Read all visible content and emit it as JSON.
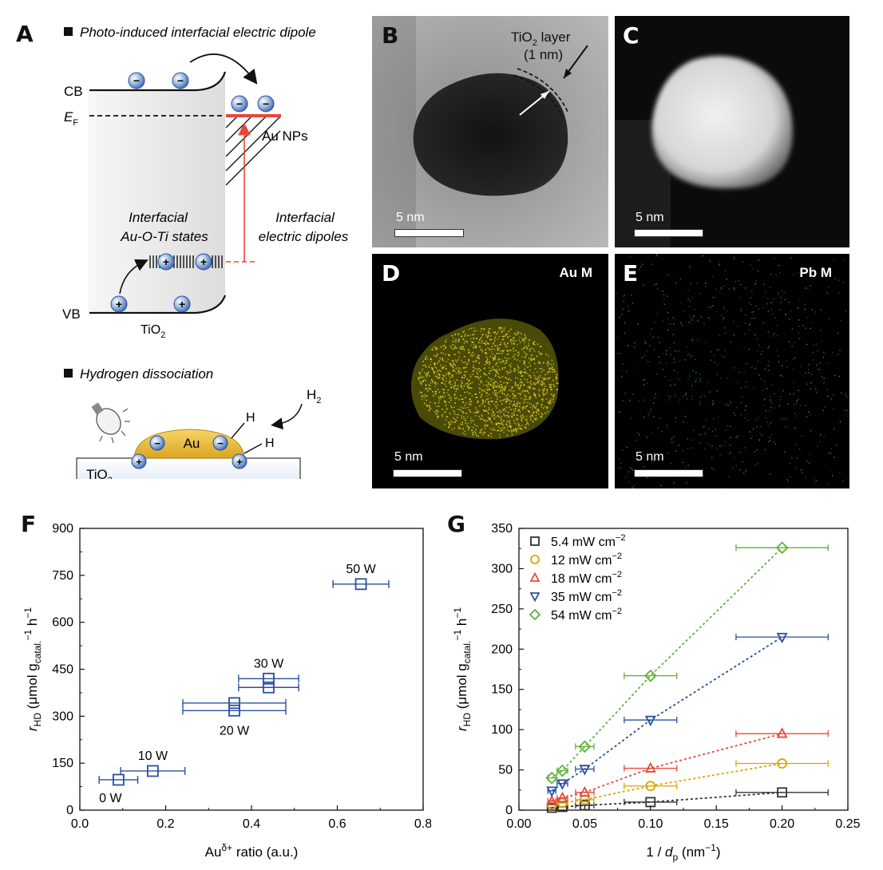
{
  "panels": {
    "A": {
      "letter": "A",
      "heading1": "Photo-induced interfacial electric dipole",
      "cb": "CB",
      "ef": "E",
      "ef_sub": "F",
      "vb": "VB",
      "tio2": "TiO",
      "tio2_sub": "2",
      "au_nps": "Au NPs",
      "interfacial_states_1": "Interfacial",
      "interfacial_states_2": "Au-O-Ti states",
      "interfacial_dipoles_1": "Interfacial",
      "interfacial_dipoles_2": "electric dipoles",
      "minus": "−",
      "plus": "+",
      "heading2": "Hydrogen dissociation",
      "h2": "H",
      "h2_sub": "2",
      "h": "H",
      "au": "Au",
      "substrate": "TiO",
      "substrate_sub": "2"
    },
    "B": {
      "letter": "B",
      "layer_label_1": "TiO",
      "layer_label_sub": "2",
      "layer_label_2": " layer",
      "layer_label_3": "(1 nm)",
      "scale": "5 nm"
    },
    "C": {
      "letter": "C",
      "scale": "5 nm"
    },
    "D": {
      "letter": "D",
      "map": "Au M",
      "scale": "5 nm",
      "color": "#e6d21e"
    },
    "E": {
      "letter": "E",
      "map": "Pb M",
      "scale": "5 nm",
      "color": "#2fa22f"
    },
    "F": {
      "letter": "F"
    },
    "G": {
      "letter": "G"
    }
  },
  "chart_data": [
    {
      "panel": "F",
      "type": "scatter",
      "xlabel": "Au",
      "xlabel_sup": "δ+",
      "xlabel_rest": " ratio (a.u.)",
      "ylabel": "r",
      "ylabel_sub": "HD",
      "ylabel_rest": " (μmol g",
      "ylabel_sub2": "catal.",
      "ylabel_rest2": " h",
      "ylabel_sup": "−1",
      "ylabel_sup2": "−1",
      "xlim": [
        0.0,
        0.8
      ],
      "ylim": [
        0,
        900
      ],
      "xticks": [
        "0.0",
        "0.2",
        "0.4",
        "0.6",
        "0.8"
      ],
      "yticks": [
        "0",
        "150",
        "300",
        "450",
        "600",
        "750",
        "900"
      ],
      "color": "#2b4f9e",
      "points": [
        {
          "x": 0.09,
          "y": 97,
          "xerr": 0.045,
          "label": "0 W"
        },
        {
          "x": 0.17,
          "y": 125,
          "xerr": 0.075,
          "label": "10 W"
        },
        {
          "x": 0.36,
          "y": 318,
          "xerr": 0.12,
          "label": "20 W"
        },
        {
          "x": 0.36,
          "y": 342,
          "xerr": 0.12,
          "label": ""
        },
        {
          "x": 0.44,
          "y": 392,
          "xerr": 0.07,
          "label": ""
        },
        {
          "x": 0.44,
          "y": 420,
          "xerr": 0.07,
          "label": "30 W"
        },
        {
          "x": 0.655,
          "y": 722,
          "xerr": 0.065,
          "label": "50 W"
        }
      ]
    },
    {
      "panel": "G",
      "type": "scatter",
      "xlabel": "1 / ",
      "xlabel_it": "d",
      "xlabel_sub": "p",
      "xlabel_rest": " (nm",
      "xlabel_sup": "−1",
      "xlabel_end": ")",
      "ylabel": "r",
      "ylabel_sub": "HD",
      "ylabel_rest": " (μmol g",
      "ylabel_sub2": "catal.",
      "ylabel_rest2": " h",
      "ylabel_sup": "−1",
      "ylabel_sup2": "−1",
      "xlim": [
        0.0,
        0.25
      ],
      "ylim": [
        0,
        350
      ],
      "xticks": [
        "0.00",
        "0.05",
        "0.10",
        "0.15",
        "0.20",
        "0.25"
      ],
      "yticks": [
        "0",
        "50",
        "100",
        "150",
        "200",
        "250",
        "300",
        "350"
      ],
      "x": [
        0.025,
        0.033,
        0.05,
        0.1,
        0.2
      ],
      "xerr": [
        0.003,
        0.004,
        0.007,
        0.02,
        0.035
      ],
      "series": [
        {
          "name": "5.4 mW cm",
          "sup": "−2",
          "marker": "square",
          "color": "#333333",
          "values": [
            3,
            4,
            6,
            10,
            22
          ]
        },
        {
          "name": "12 mW cm",
          "sup": "−2",
          "marker": "circle",
          "color": "#d9a400",
          "values": [
            7,
            9,
            13,
            30,
            58
          ]
        },
        {
          "name": "18 mW cm",
          "sup": "−2",
          "marker": "triangle-up",
          "color": "#e8483a",
          "values": [
            11,
            15,
            22,
            52,
            95
          ]
        },
        {
          "name": "35 mW cm",
          "sup": "−2",
          "marker": "triangle-down",
          "color": "#2b4f9e",
          "values": [
            24,
            33,
            51,
            112,
            215
          ]
        },
        {
          "name": "54 mW cm",
          "sup": "−2",
          "marker": "diamond",
          "color": "#5fb23a",
          "values": [
            40,
            49,
            79,
            167,
            326
          ]
        }
      ],
      "legend": "top-left"
    }
  ]
}
